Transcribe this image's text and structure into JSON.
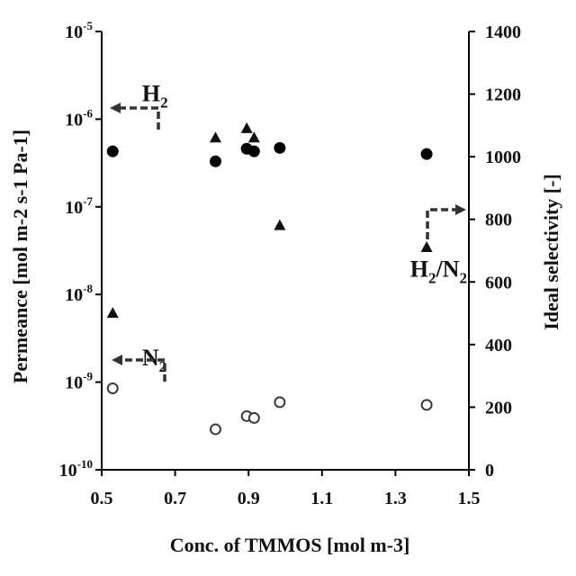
{
  "chart_data": {
    "type": "scatter",
    "xlabel": "Conc. of TMMOS [mol m-3]",
    "ylabel_left": "Permeance [mol m-2 s-1 Pa-1]",
    "ylabel_right": "Ideal selectivity [-]",
    "xlim": [
      0.5,
      1.5
    ],
    "ylim_left": [
      1e-10,
      1e-05
    ],
    "ylim_right": [
      0,
      1400
    ],
    "left_scale": "log",
    "grid": false,
    "x_ticks": [
      "0.5",
      "0.7",
      "0.9",
      "1.1",
      "1.3",
      "1.5"
    ],
    "y_left_ticks": [
      {
        "base": "10",
        "exp": "-10"
      },
      {
        "base": "10",
        "exp": "-9"
      },
      {
        "base": "10",
        "exp": "-8"
      },
      {
        "base": "10",
        "exp": "-7"
      },
      {
        "base": "10",
        "exp": "-6"
      },
      {
        "base": "10",
        "exp": "-5"
      }
    ],
    "y_right_ticks": [
      "0",
      "200",
      "400",
      "600",
      "800",
      "1000",
      "1200",
      "1400"
    ],
    "series": [
      {
        "label": "H2",
        "axis": "left",
        "marker": "filled-circle",
        "x": [
          0.53,
          0.81,
          0.895,
          0.915,
          0.985,
          1.385
        ],
        "y": [
          4.3e-07,
          3.3e-07,
          4.6e-07,
          4.3e-07,
          4.7e-07,
          4e-07
        ]
      },
      {
        "label": "N2",
        "axis": "left",
        "marker": "open-circle",
        "x": [
          0.53,
          0.81,
          0.895,
          0.915,
          0.985,
          1.385
        ],
        "y": [
          8.5e-10,
          2.9e-10,
          4.1e-10,
          3.9e-10,
          5.9e-10,
          5.5e-10
        ]
      },
      {
        "label": "H2/N2",
        "axis": "right",
        "marker": "filled-triangle",
        "x": [
          0.53,
          0.81,
          0.895,
          0.915,
          0.985,
          1.385
        ],
        "y": [
          500,
          1060,
          1090,
          1060,
          780,
          710
        ]
      }
    ],
    "annotations": [
      {
        "text": "H",
        "sub": "2",
        "x": 0.61,
        "y": 1.6e-06
      },
      {
        "text": "N",
        "sub": "2",
        "x": 0.61,
        "y": 1.55e-09
      },
      {
        "text": "H",
        "sub": "2",
        "tail": "/N",
        "sub2": "2",
        "x": 1.34,
        "y": 1.6e-08
      }
    ]
  }
}
